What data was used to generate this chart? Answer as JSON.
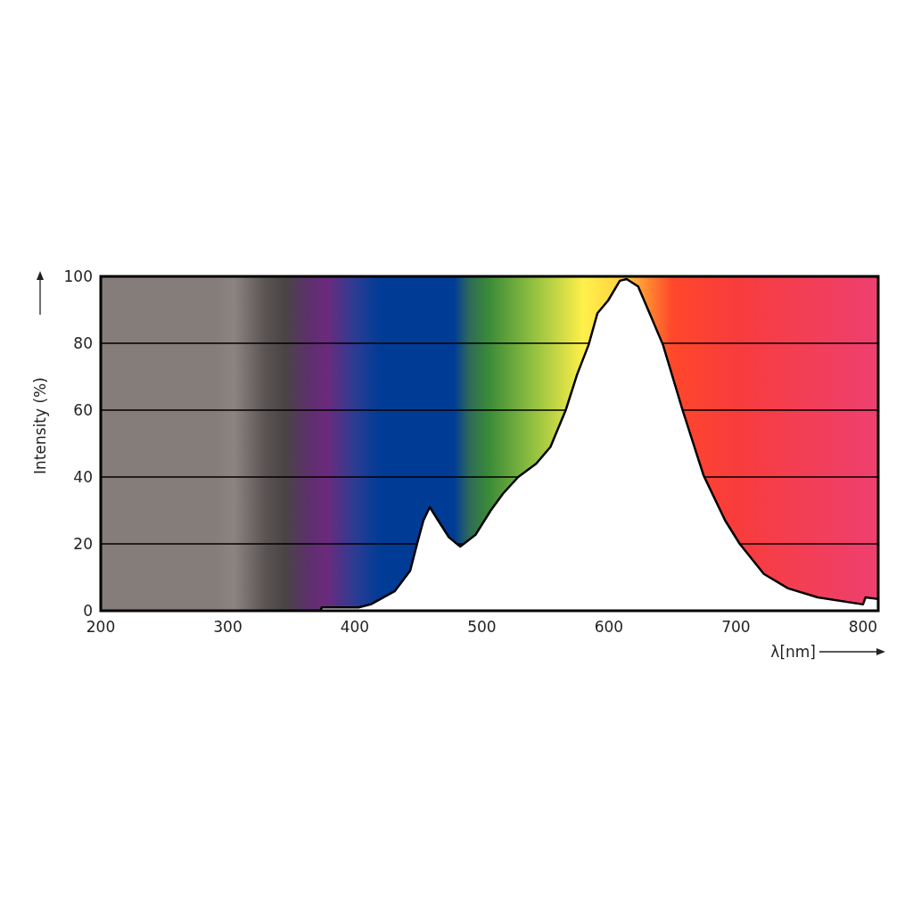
{
  "chart_data": {
    "type": "area",
    "xlabel": "λ[nm]",
    "ylabel": "Intensity (%)",
    "xlim": [
      200,
      812
    ],
    "ylim": [
      0,
      100
    ],
    "xticks": [
      200,
      300,
      400,
      500,
      600,
      700,
      800
    ],
    "yticks": [
      0,
      20,
      40,
      60,
      80,
      100
    ],
    "grid": "y",
    "series": [
      {
        "color": "#ffffff",
        "x": [
          373,
          374,
          403,
          412.5,
          431.6,
          443.6,
          449,
          454,
          459,
          465.6,
          474,
          483,
          495,
          507,
          516.6,
          528.6,
          542.8,
          554,
          566,
          575,
          584,
          591,
          599.4,
          608.6,
          614,
          623,
          632,
          642.6,
          658,
          674.5,
          691.5,
          703,
          722,
          741,
          764.4,
          800,
          802,
          812
        ],
        "values": [
          0,
          1,
          1,
          1.9,
          5.9,
          12,
          20,
          27,
          31,
          27,
          22,
          19.2,
          22.7,
          30,
          35,
          40,
          44,
          49,
          60,
          70.7,
          79.5,
          89,
          92.8,
          98.7,
          99.2,
          97,
          89,
          79.5,
          60,
          40.5,
          27,
          20,
          11,
          6.7,
          4,
          1.9,
          4,
          3.5
        ]
      }
    ]
  }
}
